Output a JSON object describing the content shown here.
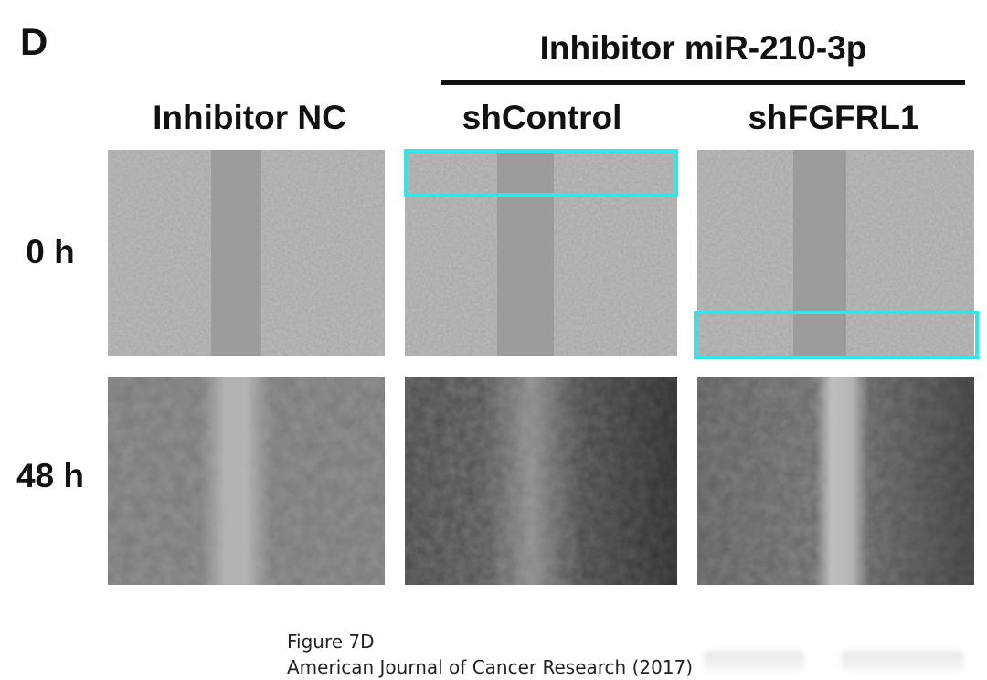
{
  "panel_letter": "D",
  "group_title": "Inhibitor miR-210-3p",
  "columns": [
    "Inhibitor NC",
    "shControl",
    "shFGFRL1"
  ],
  "rows": [
    "0 h",
    "48 h"
  ],
  "caption": {
    "line1": "Figure 7D",
    "line2": "American Journal of Cancer Research (2017)"
  },
  "highlight_color": "#33e5e8"
}
